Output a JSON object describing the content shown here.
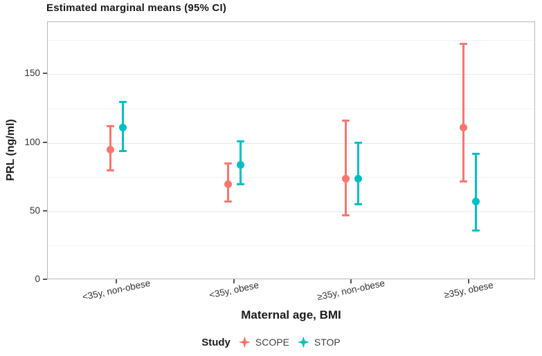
{
  "chart_data": {
    "type": "pointrange",
    "title": "Estimated marginal means (95% CI)",
    "xlabel": "Maternal age, BMI",
    "ylabel": "PRL (ng/ml)",
    "legend_title": "Study",
    "legend_position": "bottom",
    "grid": "on",
    "ylim": [
      0,
      188
    ],
    "yticks": [
      0,
      50,
      100,
      150
    ],
    "grid_major": [
      50,
      100,
      150
    ],
    "grid_minor": [
      25,
      75,
      125,
      175
    ],
    "categories": [
      "<35y, non-obese",
      "<35y, obese",
      "≥35y, non-obese",
      "≥35y, obese"
    ],
    "series": [
      {
        "name": "SCOPE",
        "color": "#F8766D",
        "points": [
          {
            "category": "<35y, non-obese",
            "mean": 95,
            "lo": 80,
            "hi": 112
          },
          {
            "category": "<35y, obese",
            "mean": 70,
            "lo": 57,
            "hi": 85
          },
          {
            "category": "≥35y, non-obese",
            "mean": 74,
            "lo": 47,
            "hi": 116
          },
          {
            "category": "≥35y, obese",
            "mean": 111,
            "lo": 72,
            "hi": 172
          }
        ]
      },
      {
        "name": "STOP",
        "color": "#00BFC4",
        "points": [
          {
            "category": "<35y, non-obese",
            "mean": 111,
            "lo": 94,
            "hi": 130
          },
          {
            "category": "<35y, obese",
            "mean": 84,
            "lo": 70,
            "hi": 101
          },
          {
            "category": "≥35y, non-obese",
            "mean": 74,
            "lo": 55,
            "hi": 100
          },
          {
            "category": "≥35y, obese",
            "mean": 57,
            "lo": 36,
            "hi": 92
          }
        ]
      }
    ]
  }
}
